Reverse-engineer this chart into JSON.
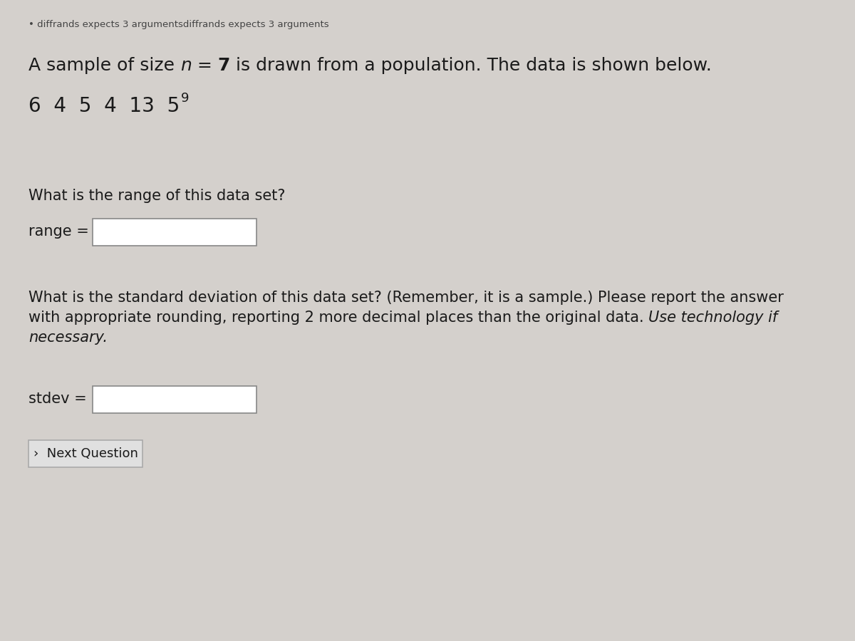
{
  "bg_color": "#d4d0cc",
  "error_bullet": "• diffrands expects 3 argumentsdiffrands expects 3 arguments",
  "error_color": "#444444",
  "error_fontsize": 9.5,
  "data_line": "6  4  5  4  13  5",
  "data_superscript": "9",
  "data_fontsize": 20,
  "q1_text": "What is the range of this data set?",
  "q1_fontsize": 15,
  "range_label": "range =",
  "range_label_fontsize": 15,
  "q2_text_line1": "What is the standard deviation of this data set? (Remember, it is a sample.) Please report the answer",
  "q2_text_line2": "with appropriate rounding, reporting 2 more decimal places than the original data. ",
  "q2_text_italic": "Use technology if",
  "q2_text_line3": "necessary.",
  "q2_fontsize": 15,
  "stdev_label": "stdev =",
  "stdev_label_fontsize": 15,
  "button_text": "›  Next Question",
  "button_fontsize": 13,
  "input_box_color": "#ffffff",
  "input_box_edge_color": "#888888",
  "button_color": "#e0e0e0",
  "button_edge_color": "#aaaaaa",
  "text_color": "#1a1a1a",
  "font_family": "DejaVu Sans",
  "main_text_size": 18
}
